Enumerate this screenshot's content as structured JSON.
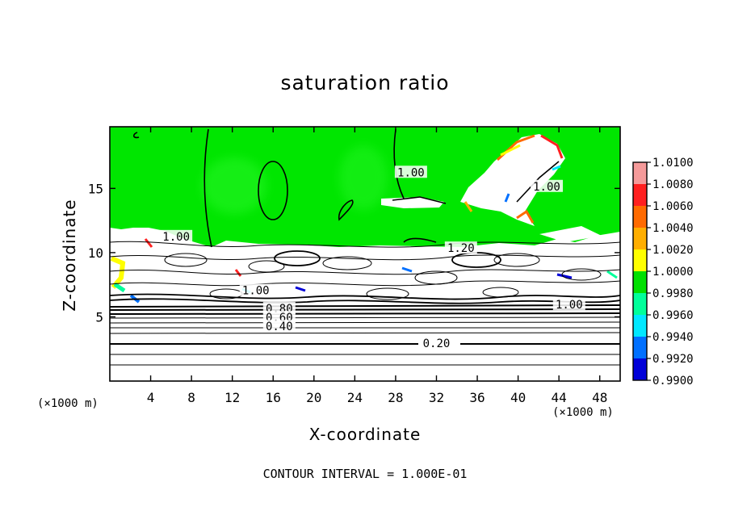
{
  "chart_data": {
    "type": "heatmap",
    "title": "saturation ratio",
    "xlabel": "X-coordinate",
    "ylabel": "Z-coordinate",
    "x_units_left": "(×1000 m)",
    "x_units_right": "(×1000 m)",
    "xlim": [
      0,
      50
    ],
    "ylim": [
      0,
      19.8
    ],
    "xticks": [
      4,
      8,
      12,
      16,
      20,
      24,
      28,
      32,
      36,
      40,
      44,
      48
    ],
    "yticks": [
      5,
      10,
      15
    ],
    "footnote": "CONTOUR INTERVAL = 1.000E-01",
    "colorbar": {
      "levels": [
        "1.0100",
        "1.0080",
        "1.0060",
        "1.0040",
        "1.0020",
        "1.0000",
        "0.9980",
        "0.9960",
        "0.9940",
        "0.9920",
        "0.9900"
      ],
      "colors": [
        "#f59a9a",
        "#ff2020",
        "#ff6a00",
        "#ffae00",
        "#ffff00",
        "#00e000",
        "#00ff9a",
        "#00e8ff",
        "#0070ff",
        "#0000d8",
        "#7a28b0"
      ]
    },
    "contour_labels": [
      {
        "text": "1.00",
        "x": 29.5,
        "z": 16.2
      },
      {
        "text": "1.00",
        "x": 42.8,
        "z": 15.1
      },
      {
        "text": "1.00",
        "x": 6.5,
        "z": 11.2
      },
      {
        "text": "1.20",
        "x": 34.4,
        "z": 10.3
      },
      {
        "text": "1.00",
        "x": 14.3,
        "z": 7.0
      },
      {
        "text": "1.00",
        "x": 45.0,
        "z": 5.9
      },
      {
        "text": "0.80",
        "x": 16.6,
        "z": 5.6
      },
      {
        "text": "0.60",
        "x": 16.6,
        "z": 4.9
      },
      {
        "text": "0.40",
        "x": 16.6,
        "z": 4.2
      },
      {
        "text": "0.20",
        "x": 32.0,
        "z": 2.9
      }
    ]
  }
}
